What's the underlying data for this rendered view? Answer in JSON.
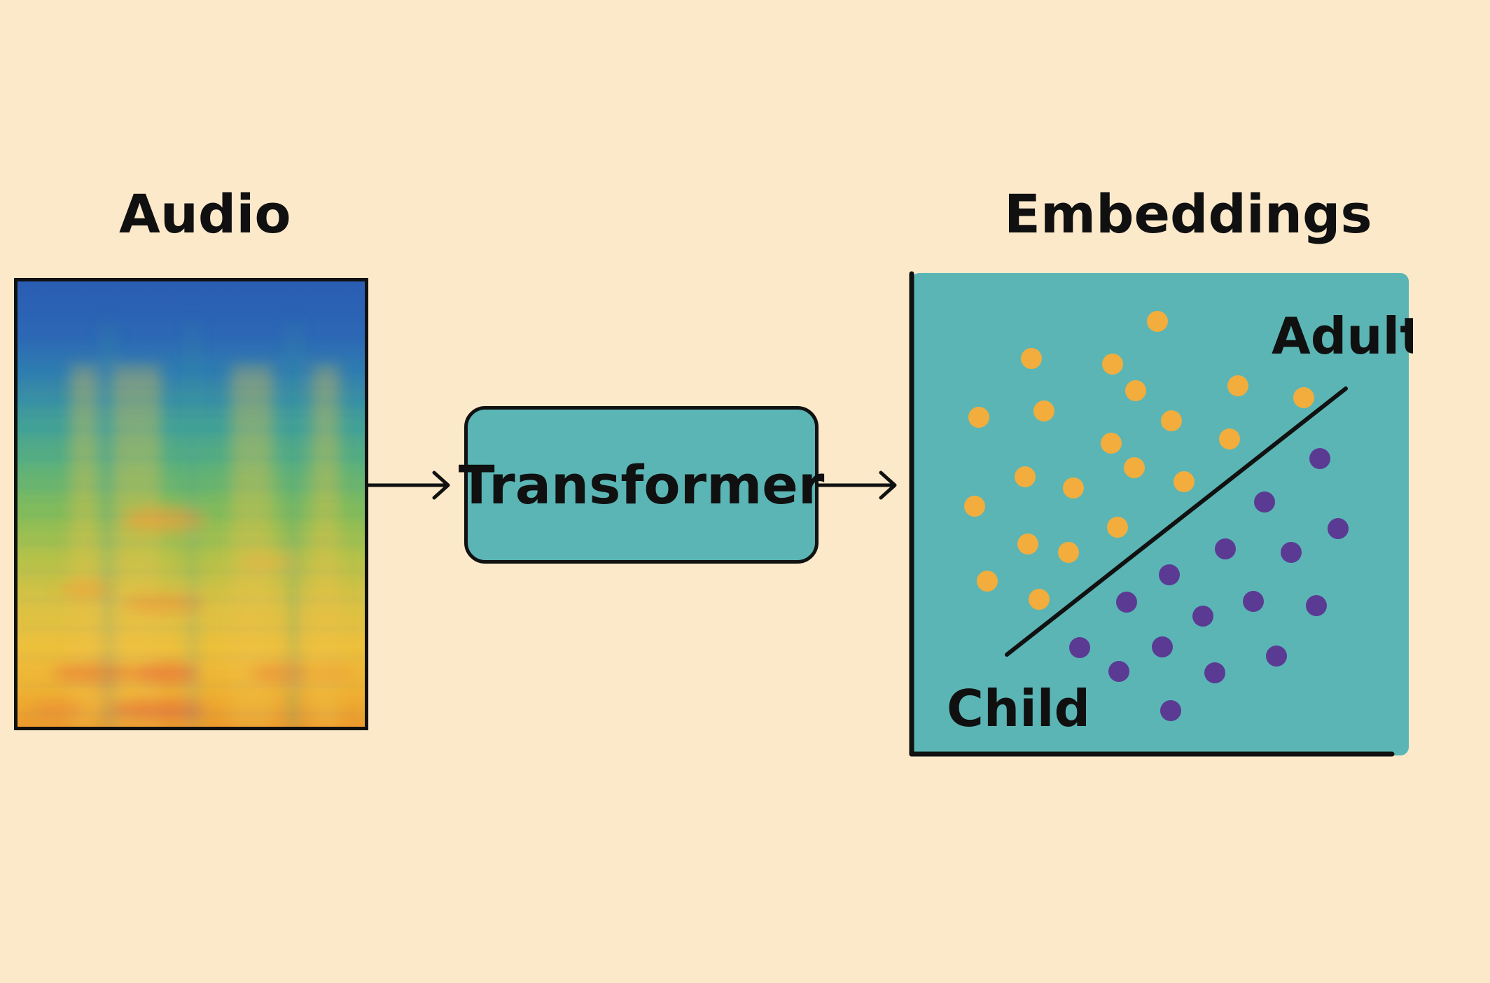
{
  "title_left": "Audio",
  "title_right": "Embeddings",
  "transformer": {
    "label": "Transformer"
  },
  "embedding_plot": {
    "region_upper_label": "Adult",
    "region_lower_label": "Child"
  },
  "colors": {
    "background": "#fce9ca",
    "teal": "#5bb5b5",
    "adult_point": "#f2ad3d",
    "child_point": "#5b3a93",
    "ink": "#111111"
  }
}
